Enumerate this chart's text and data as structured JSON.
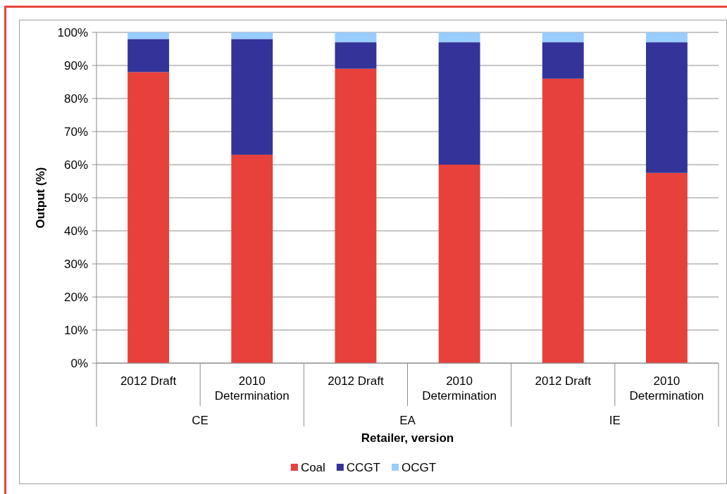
{
  "chart_data": {
    "type": "bar",
    "stacked": true,
    "xlabel": "Retailer, version",
    "ylabel": "Output (%)",
    "categories": [
      "2012 Draft",
      "2010 Determination",
      "2012 Draft",
      "2010 Determination",
      "2012 Draft",
      "2010 Determination"
    ],
    "annotations": [
      "CE",
      "EA",
      "IE"
    ],
    "series": [
      {
        "name": "Coal",
        "color": "#e8403a",
        "values": [
          88,
          63,
          89,
          60,
          86,
          57.5
        ]
      },
      {
        "name": "CCGT",
        "color": "#333399",
        "values": [
          10,
          35,
          8,
          37,
          11,
          39.5
        ]
      },
      {
        "name": "OCGT",
        "color": "#99ccff",
        "values": [
          2,
          2,
          3,
          3,
          3,
          3
        ]
      }
    ],
    "ylim": [
      0,
      100
    ],
    "yticks": [
      {
        "value": 0,
        "label": "0%"
      },
      {
        "value": 10,
        "label": "10%"
      },
      {
        "value": 20,
        "label": "20%"
      },
      {
        "value": 30,
        "label": "30%"
      },
      {
        "value": 40,
        "label": "40%"
      },
      {
        "value": 50,
        "label": "50%"
      },
      {
        "value": 60,
        "label": "60%"
      },
      {
        "value": 70,
        "label": "70%"
      },
      {
        "value": 80,
        "label": "80%"
      },
      {
        "value": 90,
        "label": "90%"
      },
      {
        "value": 100,
        "label": "100%"
      }
    ],
    "grid": "y",
    "legend": "bottom"
  }
}
